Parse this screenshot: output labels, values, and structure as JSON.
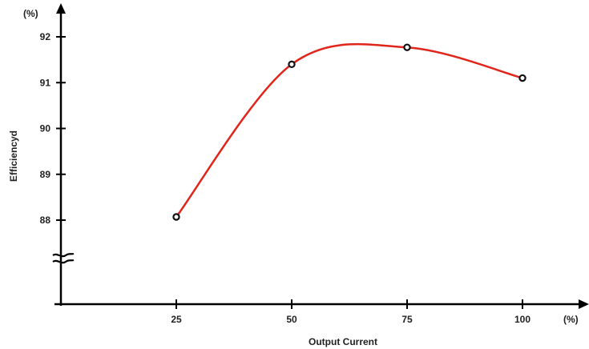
{
  "chart_data": {
    "type": "line",
    "title": "",
    "xlabel": "Output Current",
    "ylabel": "Efficiencyd",
    "x_unit": "(%)",
    "y_unit": "(%)",
    "x_ticks": [
      "25",
      "50",
      "75",
      "100"
    ],
    "y_ticks": [
      "88",
      "89",
      "90",
      "91",
      "92"
    ],
    "xlim": [
      0,
      115
    ],
    "ylim": [
      88,
      92
    ],
    "y_axis_break": true,
    "grid": false,
    "series": [
      {
        "x": [
          25,
          50,
          75,
          100
        ],
        "y": [
          88.07,
          91.4,
          91.77,
          91.1
        ]
      }
    ],
    "colors": {
      "line": "#e0261b",
      "marker": "#111111",
      "axis": "#000000"
    }
  }
}
